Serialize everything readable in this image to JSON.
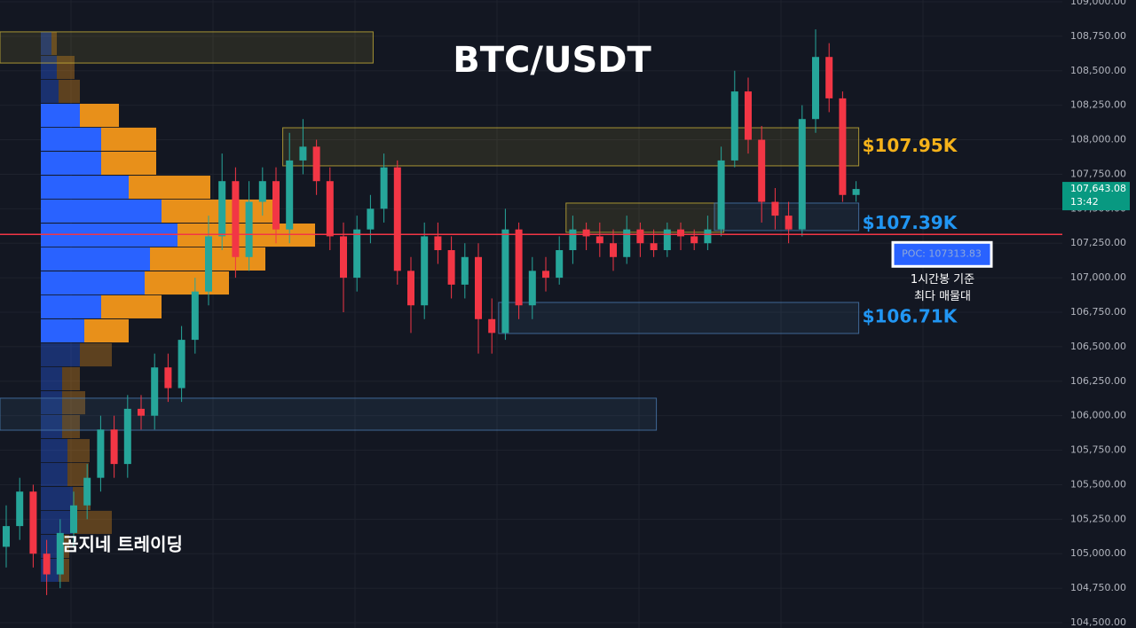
{
  "chart_data": {
    "type": "candlestick",
    "title": "BTC/USDT",
    "watermark": "곰지네 트레이딩",
    "up_color": "#26a69a",
    "down_color": "#f23645",
    "open": [
      105050,
      105200,
      105450,
      105000,
      104850,
      105150,
      105350,
      105550,
      105900,
      105650,
      106050,
      106000,
      106350,
      106200,
      106550,
      106900,
      107300,
      107700,
      107150,
      107550,
      107700,
      107350,
      107850,
      107950,
      107700,
      107300,
      107000,
      107350,
      107500,
      107800,
      107050,
      106800,
      107300,
      107200,
      106950,
      107150,
      106700,
      106600,
      107350,
      106800,
      107050,
      107000,
      107200,
      107350,
      107300,
      107250,
      107150,
      107350,
      107250,
      107200,
      107350,
      107300,
      107250,
      107350,
      107850,
      108350,
      108000,
      107550,
      107450,
      107350,
      108150,
      108600,
      108300,
      107600
    ],
    "high": [
      105350,
      105550,
      105500,
      105100,
      105250,
      105450,
      105650,
      106000,
      106000,
      106150,
      106150,
      106450,
      106450,
      106650,
      107000,
      107450,
      107900,
      107800,
      107700,
      107800,
      107800,
      108050,
      108150,
      108000,
      107800,
      107400,
      107450,
      107600,
      107900,
      107850,
      107150,
      107400,
      107400,
      107300,
      107250,
      107250,
      106850,
      107500,
      107400,
      107150,
      107150,
      107300,
      107450,
      107400,
      107400,
      107350,
      107450,
      107400,
      107350,
      107400,
      107400,
      107350,
      107450,
      107950,
      108500,
      108450,
      108100,
      107650,
      107550,
      108250,
      108800,
      108700,
      108350,
      107700
    ],
    "low": [
      104900,
      105100,
      104900,
      104700,
      104750,
      105050,
      105250,
      105450,
      105550,
      105550,
      105900,
      105900,
      106100,
      106100,
      106450,
      106800,
      107200,
      107000,
      107050,
      107450,
      107250,
      107250,
      107750,
      107600,
      107200,
      106750,
      106900,
      107250,
      107400,
      106950,
      106600,
      106700,
      107100,
      106850,
      106850,
      106450,
      106450,
      106550,
      106700,
      106700,
      106900,
      106950,
      107100,
      107200,
      107150,
      107050,
      107100,
      107150,
      107150,
      107150,
      107200,
      107200,
      107200,
      107300,
      107800,
      107900,
      107400,
      107350,
      107250,
      107300,
      108050,
      108200,
      107550,
      107550
    ],
    "close": [
      105200,
      105450,
      105000,
      104850,
      105150,
      105350,
      105550,
      105900,
      105650,
      106050,
      106000,
      106350,
      106200,
      106550,
      106900,
      107300,
      107700,
      107150,
      107550,
      107700,
      107350,
      107850,
      107950,
      107700,
      107300,
      107000,
      107350,
      107500,
      107800,
      107050,
      106800,
      107300,
      107200,
      106950,
      107150,
      106700,
      106600,
      107350,
      106800,
      107050,
      107000,
      107200,
      107350,
      107300,
      107250,
      107150,
      107350,
      107250,
      107200,
      107350,
      107300,
      107250,
      107350,
      107850,
      108350,
      108000,
      107550,
      107450,
      107350,
      108150,
      108600,
      108300,
      107600,
      107643.08
    ],
    "ylim": [
      104500,
      109000
    ],
    "yticks": [
      {
        "value": 104500,
        "label": "104,500.00"
      },
      {
        "value": 104750,
        "label": "104,750.00"
      },
      {
        "value": 105000,
        "label": "105,000.00"
      },
      {
        "value": 105250,
        "label": "105,250.00"
      },
      {
        "value": 105500,
        "label": "105,500.00"
      },
      {
        "value": 105750,
        "label": "105,750.00"
      },
      {
        "value": 106000,
        "label": "106,000.00"
      },
      {
        "value": 106250,
        "label": "106,250.00"
      },
      {
        "value": 106500,
        "label": "106,500.00"
      },
      {
        "value": 106750,
        "label": "106,750.00"
      },
      {
        "value": 107000,
        "label": "107,000.00"
      },
      {
        "value": 107250,
        "label": "107,250.00"
      },
      {
        "value": 107500,
        "label": "107,500.00"
      },
      {
        "value": 107750,
        "label": "107,750.00"
      },
      {
        "value": 108000,
        "label": "108,000.00"
      },
      {
        "value": 108250,
        "label": "108,250.00"
      },
      {
        "value": 108500,
        "label": "108,500.00"
      },
      {
        "value": 108750,
        "label": "108,750.00"
      },
      {
        "value": 109000,
        "label": "109,000.00"
      }
    ],
    "grid": true,
    "last_price": {
      "value": 107643.08,
      "label": "107,643.08",
      "countdown": "13:42",
      "color": "#089981"
    },
    "poc": {
      "value": 107313.83,
      "label": "POC: 107313.83",
      "color": "#f23645",
      "note": [
        "1시간봉 기준",
        "최다 매물대"
      ]
    },
    "profile": {
      "up_color": "#2962ff",
      "down_color": "#e8901a",
      "value_area": [
        106600,
        108250
      ],
      "levels": [
        108698,
        108524,
        108351,
        108177,
        108004,
        107830,
        107656,
        107483,
        107309,
        107136,
        106962,
        106789,
        106615,
        106441,
        106268,
        106094,
        105921,
        105747,
        105574,
        105400,
        105227,
        105053,
        104880
      ],
      "up": [
        12,
        18,
        20,
        44,
        68,
        68,
        99,
        136,
        154,
        123,
        117,
        68,
        49,
        44,
        24,
        24,
        24,
        30,
        30,
        36,
        36,
        20,
        20
      ],
      "down": [
        6,
        20,
        24,
        44,
        62,
        62,
        92,
        130,
        155,
        130,
        95,
        68,
        50,
        36,
        20,
        26,
        20,
        25,
        24,
        20,
        44,
        12,
        12
      ]
    },
    "zones": [
      {
        "top": 108782,
        "bottom": 108556,
        "start": 0,
        "end": 27,
        "color": "#c9b037"
      },
      {
        "top": 108087,
        "bottom": 107811,
        "start": 21,
        "end": 63,
        "color": "#c9b037",
        "price_label": {
          "value": 107950,
          "label": "$107.95K",
          "color": "#f5b21a"
        }
      },
      {
        "top": 107541,
        "bottom": 107329,
        "start": 42,
        "end": 53,
        "color": "#c9b037"
      },
      {
        "top": 107541,
        "bottom": 107342,
        "start": 53,
        "end": 63,
        "color": "#4a7bb0",
        "price_label": {
          "value": 107390,
          "label": "$107.39K",
          "color": "#2196f3"
        }
      },
      {
        "top": 106821,
        "bottom": 106596,
        "start": 37,
        "end": 63,
        "color": "#4a7bb0",
        "price_label": {
          "value": 106710,
          "label": "$106.71K",
          "color": "#2196f3"
        }
      },
      {
        "top": 106127,
        "bottom": 105895,
        "start": 0,
        "end": 48,
        "color": "#4a7bb0"
      }
    ]
  }
}
